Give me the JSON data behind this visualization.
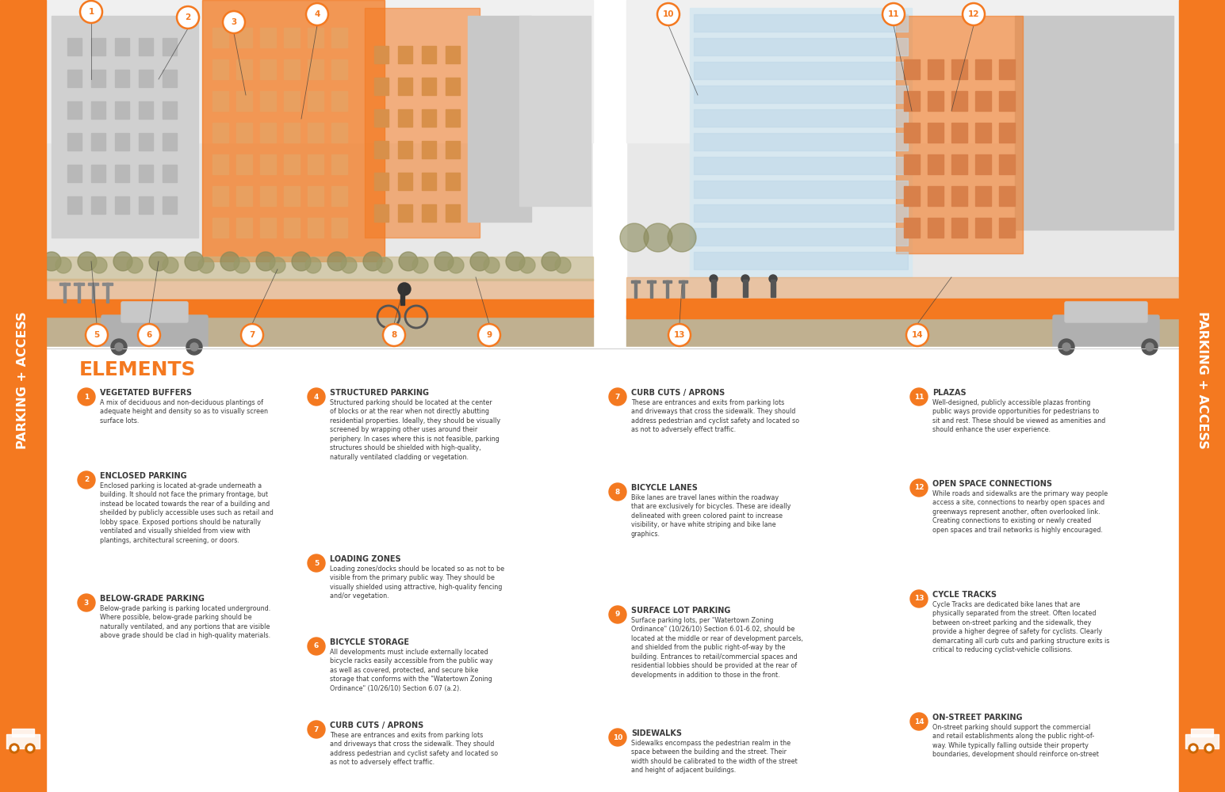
{
  "bg_color": "#ffffff",
  "orange": "#F47920",
  "dark_gray": "#3a3a3a",
  "white": "#ffffff",
  "sidebar_text": "PARKING + ACCESS",
  "title": "ELEMENTS",
  "elements_col1": [
    {
      "num": "1",
      "heading": "VEGETATED BUFFERS",
      "body": "A mix of deciduous and non-deciduous plantings of\nadequate height and density so as to visually screen\nsurface lots."
    },
    {
      "num": "2",
      "heading": "ENCLOSED PARKING",
      "body": "Enclosed parking is located at-grade underneath a\nbuilding. It should not face the primary frontage, but\ninstead be located towards the rear of a building and\nsheilded by publicly accessible uses such as retail and\nlobby space. Exposed portions should be naturally\nventilated and visually shielded from view with\nplantings, architectural screening, or doors."
    },
    {
      "num": "3",
      "heading": "BELOW-GRADE PARKING",
      "body": "Below-grade parking is parking located underground.\nWhere possible, below-grade parking should be\nnaturally ventilated, and any portions that are visible\nabove grade should be clad in high-quality materials."
    }
  ],
  "elements_col2": [
    {
      "num": "4",
      "heading": "STRUCTURED PARKING",
      "body": "Structured parking should be located at the center\nof blocks or at the rear when not directly abutting\nresidential properties. Ideally, they should be visually\nscreened by wrapping other uses around their\nperiphery. In cases where this is not feasible, parking\nstructures should be shielded with high-quality,\nnaturally ventilated cladding or vegetation."
    },
    {
      "num": "5",
      "heading": "LOADING ZONES",
      "body": "Loading zones/docks should be located so as not to be\nvisible from the primary public way. They should be\nvisually shielded using attractive, high-quality fencing\nand/or vegetation."
    },
    {
      "num": "6",
      "heading": "BICYCLE STORAGE",
      "body": "All developments must include externally located\nbicycle racks easily accessible from the public way\nas well as covered, protected, and secure bike\nstorage that conforms with the \"Watertown Zoning\nOrdinance\" (10/26/10) Section 6.07 (a.2)."
    },
    {
      "num": "7",
      "heading": "CURB CUTS / APRONS",
      "body": "These are entrances and exits from parking lots\nand driveways that cross the sidewalk. They should\naddress pedestrian and cyclist safety and located so\nas not to adversely effect traffic."
    }
  ],
  "elements_col3": [
    {
      "num": "7",
      "heading": "CURB CUTS / APRONS",
      "body": "These are entrances and exits from parking lots\nand driveways that cross the sidewalk. They should\naddress pedestrian and cyclist safety and located so\nas not to adversely effect traffic."
    },
    {
      "num": "8",
      "heading": "BICYCLE LANES",
      "body": "Bike lanes are travel lanes within the roadway\nthat are exclusively for bicycles. These are ideally\ndelineated with green colored paint to increase\nvisibility, or have white striping and bike lane\ngraphics."
    },
    {
      "num": "9",
      "heading": "SURFACE LOT PARKING",
      "body": "Surface parking lots, per \"Watertown Zoning\nOrdinance\" (10/26/10) Section 6.01-6.02, should be\nlocated at the middle or rear of development parcels,\nand shielded from the public right-of-way by the\nbuilding. Entrances to retail/commercial spaces and\nresidential lobbies should be provided at the rear of\ndevelopments in addition to those in the front."
    },
    {
      "num": "10",
      "heading": "SIDEWALKS",
      "body": "Sidewalks encompass the pedestrian realm in the\nspace between the building and the street. Their\nwidth should be calibrated to the width of the street\nand height of adjacent buildings."
    }
  ],
  "elements_col4": [
    {
      "num": "11",
      "heading": "PLAZAS",
      "body": "Well-designed, publicly accessible plazas fronting\npublic ways provide opportunities for pedestrians to\nsit and rest. These should be viewed as amenities and\nshould enhance the user experience."
    },
    {
      "num": "12",
      "heading": "OPEN SPACE CONNECTIONS",
      "body": "While roads and sidewalks are the primary way people\naccess a site, connections to nearby open spaces and\ngreenways represent another, often overlooked link.\nCreating connections to existing or newly created\nopen spaces and trail networks is highly encouraged."
    },
    {
      "num": "13",
      "heading": "CYCLE TRACKS",
      "body": "Cycle Tracks are dedicated bike lanes that are\nphysically separated from the street. Often located\nbetween on-street parking and the sidewalk, they\nprovide a higher degree of safety for cyclists. Clearly\ndemarcating all curb cuts and parking structure exits is\ncritical to reducing cyclist-vehicle collisions."
    },
    {
      "num": "14",
      "heading": "ON-STREET PARKING",
      "body": "On-street parking should support the commercial\nand retail establishments along the public right-of-\nway. While typically falling outside their property\nboundaries, development should reinforce on-street"
    }
  ],
  "top_callouts_left": [
    [
      115,
      985,
      "1"
    ],
    [
      237,
      978,
      "2"
    ],
    [
      295,
      972,
      "3"
    ],
    [
      400,
      982,
      "4"
    ]
  ],
  "bottom_callouts_left": [
    [
      122,
      577,
      "5"
    ],
    [
      188,
      577,
      "6"
    ],
    [
      318,
      577,
      "7"
    ],
    [
      497,
      577,
      "8"
    ],
    [
      617,
      577,
      "9"
    ]
  ],
  "top_callouts_right": [
    [
      843,
      982,
      "10"
    ],
    [
      1127,
      982,
      "11"
    ],
    [
      1228,
      982,
      "12"
    ]
  ],
  "bottom_callouts_right": [
    [
      857,
      577,
      "13"
    ],
    [
      1157,
      577,
      "14"
    ]
  ]
}
